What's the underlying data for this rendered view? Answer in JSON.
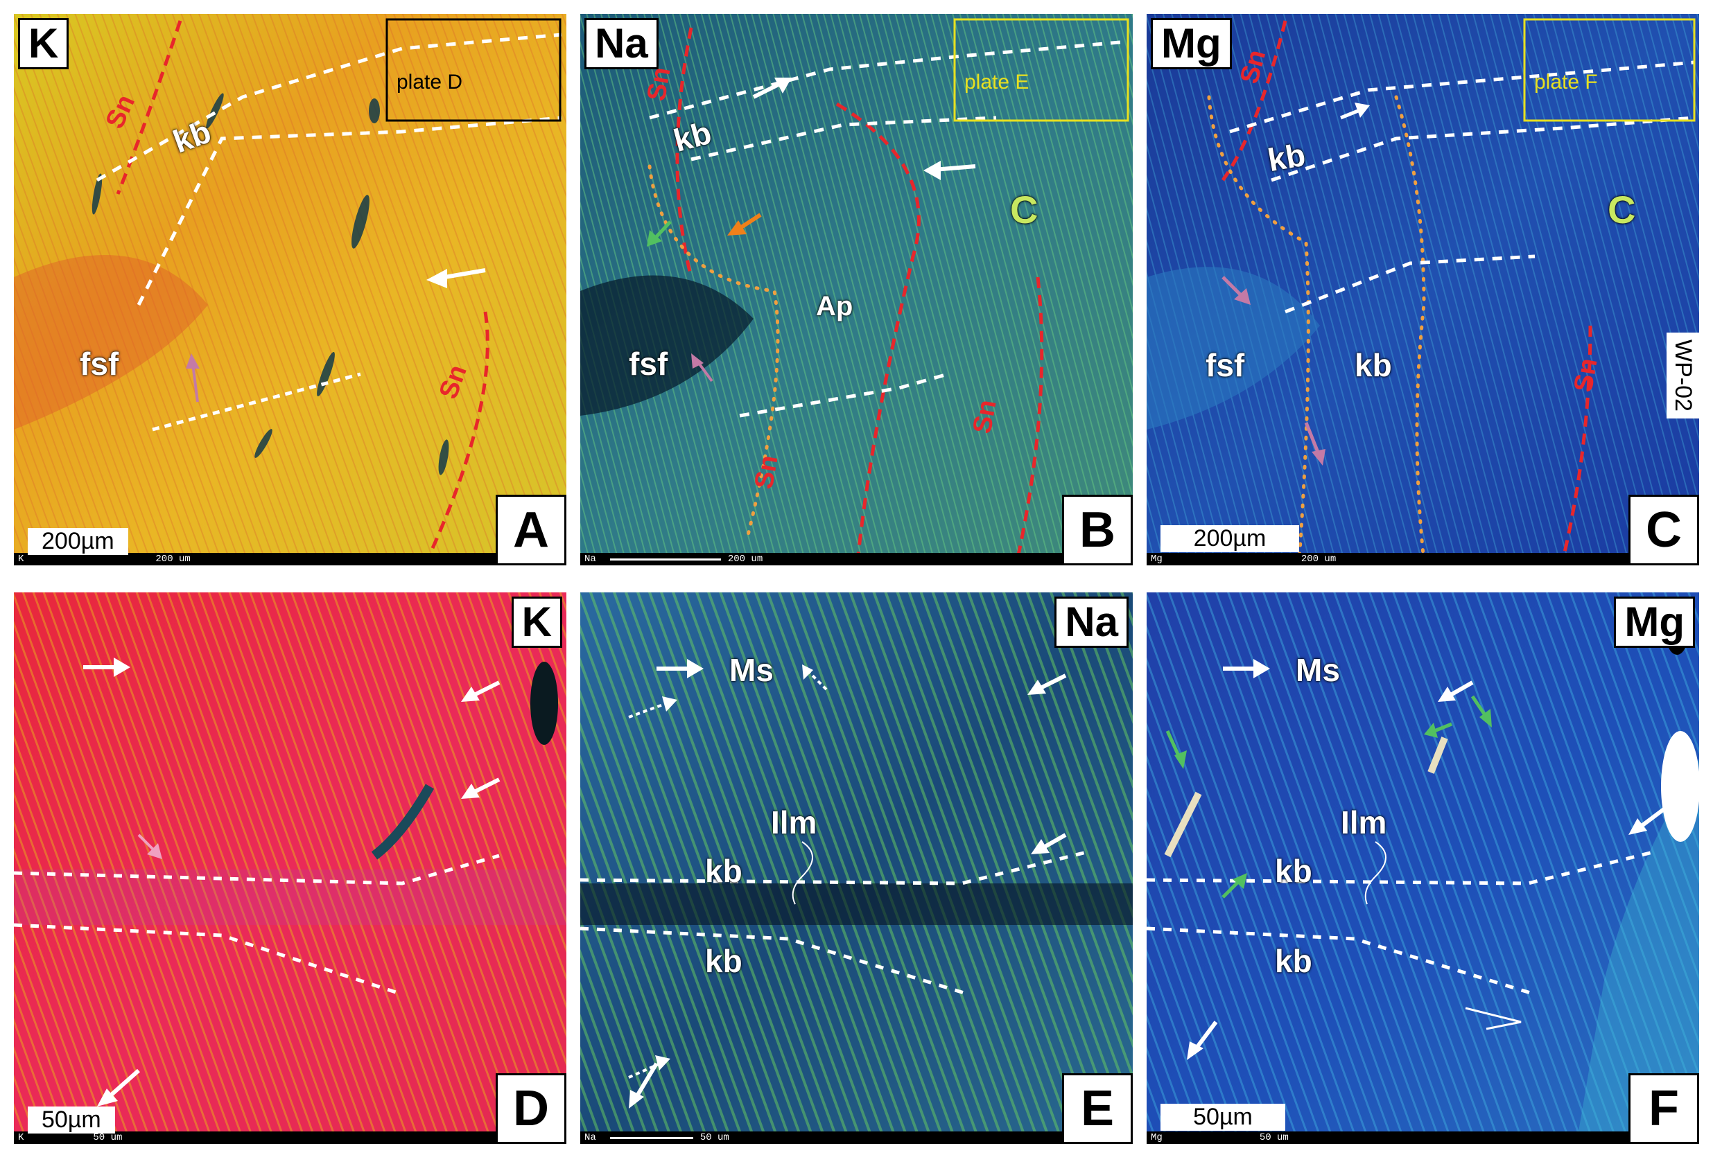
{
  "panels": {
    "a": {
      "element": "K",
      "letter": "A",
      "scale": "200µm",
      "scale_small": "200 um",
      "k_small": "K",
      "plate": "plate D",
      "kb": "kb",
      "fsf": "fsf",
      "sn1": "Sn",
      "sn2": "Sn",
      "color": "#e8b21d"
    },
    "b": {
      "element": "Na",
      "letter": "B",
      "scale_small": "200 um",
      "na_small": "Na",
      "plate": "plate E",
      "kb": "kb",
      "fsf": "fsf",
      "ap": "Ap",
      "c": "C",
      "sn1": "Sn",
      "sn2": "Sn",
      "sn3": "Sn",
      "color": "#2a6a8a"
    },
    "c": {
      "element": "Mg",
      "letter": "C",
      "scale": "200µm",
      "scale_small": "200 um",
      "mg_small": "Mg",
      "plate": "plate F",
      "kb": "kb",
      "kb2": "kb",
      "fsf": "fsf",
      "c": "C",
      "sn1": "Sn",
      "sn2": "Sn",
      "sample": "WP-02",
      "color": "#1e3fa0"
    },
    "d": {
      "element": "K",
      "letter": "D",
      "scale": "50µm",
      "scale_small": "50 um",
      "k_small": "K",
      "color": "#e8245a"
    },
    "e": {
      "element": "Na",
      "letter": "E",
      "scale_small": "50 um",
      "na_small": "Na",
      "ms": "Ms",
      "ilm": "Ilm",
      "kb1": "kb",
      "kb2": "kb",
      "color": "#2a5a88"
    },
    "f": {
      "element": "Mg",
      "letter": "F",
      "scale": "50µm",
      "scale_small": "50 um",
      "mg_small": "Mg",
      "ms": "Ms",
      "ilm": "Ilm",
      "kb1": "kb",
      "kb2": "kb",
      "color": "#2842a8"
    }
  }
}
